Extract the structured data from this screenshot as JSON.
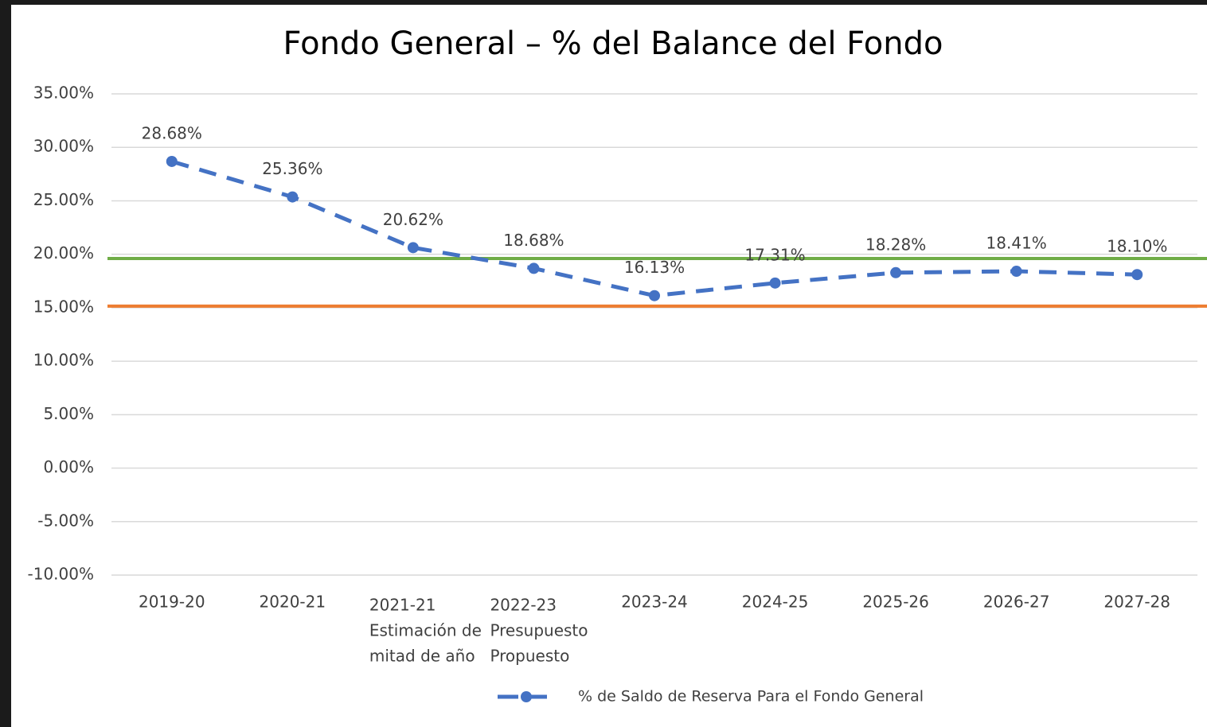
{
  "chart_data": {
    "type": "line",
    "title": "Fondo General – % del Balance del Fondo",
    "categories": [
      [
        "2019-20"
      ],
      [
        "2020-21"
      ],
      [
        "2021-21",
        "Estimación de",
        "mitad de año"
      ],
      [
        "2022-23",
        "Presupuesto",
        "Propuesto"
      ],
      [
        "2023-24"
      ],
      [
        "2024-25"
      ],
      [
        "2025-26"
      ],
      [
        "2026-27"
      ],
      [
        "2027-28"
      ]
    ],
    "series": [
      {
        "name": "% de Saldo de Reserva Para el Fondo General",
        "color": "#4472c4",
        "values": [
          28.68,
          25.36,
          20.62,
          18.68,
          16.13,
          17.31,
          18.28,
          18.41,
          18.1
        ],
        "value_labels": [
          "28.68%",
          "25.36%",
          "20.62%",
          "18.68%",
          "16.13%",
          "17.31%",
          "18.28%",
          "18.41%",
          "18.10%"
        ]
      }
    ],
    "reference_lines": [
      {
        "value": 19.6,
        "color": "#70ad47"
      },
      {
        "value": 15.15,
        "color": "#ed7d31"
      }
    ],
    "ylim": [
      -10,
      35
    ],
    "yticks": [
      {
        "value": -10,
        "label": "-10.00%"
      },
      {
        "value": -5,
        "label": "-5.00%"
      },
      {
        "value": 0,
        "label": "0.00%"
      },
      {
        "value": 5,
        "label": "5.00%"
      },
      {
        "value": 10,
        "label": "10.00%"
      },
      {
        "value": 15,
        "label": "15.00%"
      },
      {
        "value": 20,
        "label": "20.00%"
      },
      {
        "value": 25,
        "label": "25.00%"
      },
      {
        "value": 30,
        "label": "30.00%"
      },
      {
        "value": 35,
        "label": "35.00%"
      }
    ],
    "grid": true,
    "legend": "bottom"
  }
}
